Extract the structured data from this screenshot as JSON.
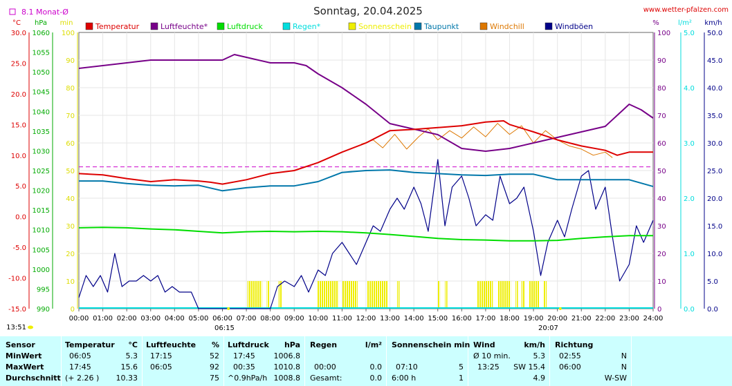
{
  "header": {
    "title": "Sonntag, 20.04.2025",
    "source": "www.wetter-pfalzen.com",
    "monat_label": "8.1 Monat-Ø",
    "time_left": "13:51",
    "sunrise": "06:15",
    "sunset": "20:07"
  },
  "colors": {
    "temperatur": "#dd0000",
    "luftfeuchte": "#770088",
    "luftdruck": "#00dd00",
    "regen": "#00dddd",
    "sonnenschein": "#eeee00",
    "taupunkt": "#0077aa",
    "windchill": "#dd7700",
    "windboeen": "#000088",
    "monat": "#cc00cc",
    "stats_bg": "#ccffff"
  },
  "legend": [
    {
      "key": "temperatur",
      "label": "Temperatur"
    },
    {
      "key": "luftfeuchte",
      "label": "Luftfeuchte*"
    },
    {
      "key": "luftdruck",
      "label": "Luftdruck"
    },
    {
      "key": "regen",
      "label": "Regen*"
    },
    {
      "key": "sonnenschein",
      "label": "Sonnenschein"
    },
    {
      "key": "taupunkt",
      "label": "Taupunkt"
    },
    {
      "key": "windchill",
      "label": "Windchill"
    },
    {
      "key": "windboeen",
      "label": "Windböen"
    }
  ],
  "axes": {
    "temp": {
      "unit": "°C",
      "ticks": [
        "30.0",
        "25.0",
        "20.0",
        "15.0",
        "10.0",
        "5.0",
        "0.0",
        "-5.0",
        "-10.0",
        "-15.0"
      ]
    },
    "hpa": {
      "unit": "hPa",
      "ticks": [
        "1060",
        "1055",
        "1050",
        "1045",
        "1040",
        "1035",
        "1030",
        "1025",
        "1020",
        "1015",
        "1010",
        "1005",
        "1000",
        "995",
        "990"
      ]
    },
    "min": {
      "unit": "min",
      "ticks": [
        "100",
        "90",
        "80",
        "70",
        "60",
        "50",
        "40",
        "30",
        "20",
        "10",
        "0"
      ]
    },
    "pct": {
      "unit": "%",
      "ticks": [
        "100",
        "90",
        "80",
        "70",
        "60",
        "50",
        "40",
        "30",
        "20",
        "10",
        "0"
      ]
    },
    "rain": {
      "unit": "l/m²",
      "ticks": [
        "5.0",
        "4.0",
        "3.0",
        "2.0",
        "1.0",
        "0.0"
      ]
    },
    "wind": {
      "unit": "km/h",
      "ticks": [
        "50.0",
        "45.0",
        "40.0",
        "35.0",
        "30.0",
        "25.0",
        "20.0",
        "15.0",
        "10.0",
        "5.0",
        "0.0"
      ]
    },
    "x_ticks": [
      "00:00",
      "01:00",
      "02:00",
      "03:00",
      "04:00",
      "05:00",
      "06:00",
      "07:00",
      "08:00",
      "09:00",
      "10:00",
      "11:00",
      "12:00",
      "13:00",
      "14:00",
      "15:00",
      "16:00",
      "17:00",
      "18:00",
      "19:00",
      "20:00",
      "21:00",
      "22:00",
      "23:00",
      "24:00"
    ]
  },
  "chart_data": {
    "type": "line",
    "x_unit": "hour",
    "monat_mittel_temp": 8.1,
    "series": [
      {
        "name": "Temperatur",
        "axis": "temp",
        "x": [
          0,
          1,
          2,
          3,
          4,
          5,
          5.5,
          6,
          7,
          8,
          9,
          10,
          11,
          12,
          13,
          14,
          15,
          16,
          17,
          17.75,
          18,
          19,
          20,
          21,
          22,
          22.5,
          23,
          24
        ],
        "y": [
          7.0,
          6.8,
          6.2,
          5.7,
          6.0,
          5.8,
          5.6,
          5.3,
          6.0,
          7.0,
          7.5,
          8.8,
          10.5,
          12.0,
          14.0,
          14.2,
          14.5,
          14.8,
          15.4,
          15.6,
          15.0,
          13.8,
          12.5,
          11.5,
          10.8,
          10.0,
          10.5,
          10.5
        ]
      },
      {
        "name": "Luftfeuchte*",
        "axis": "pct",
        "x": [
          0,
          1,
          2,
          3,
          4,
          5,
          6,
          6.5,
          7,
          8,
          9,
          9.5,
          10,
          11,
          12,
          13,
          14,
          15,
          16,
          17,
          18,
          19,
          20,
          20.5,
          21,
          22,
          22.5,
          23,
          23.5,
          24
        ],
        "y": [
          87,
          88,
          89,
          90,
          90,
          90,
          90,
          92,
          91,
          89,
          89,
          88,
          85,
          80,
          74,
          67,
          65,
          63,
          58,
          57,
          58,
          60,
          62,
          63,
          64,
          66,
          70,
          74,
          72,
          69
        ]
      },
      {
        "name": "Luftdruck",
        "axis": "hpa",
        "x": [
          0,
          1,
          2,
          3,
          4,
          5,
          6,
          7,
          8,
          9,
          10,
          11,
          12,
          13,
          14,
          15,
          16,
          17,
          18,
          19,
          20,
          21,
          22,
          23,
          24
        ],
        "y": [
          1010.5,
          1010.6,
          1010.5,
          1010.2,
          1010.0,
          1009.6,
          1009.2,
          1009.5,
          1009.6,
          1009.5,
          1009.6,
          1009.5,
          1009.2,
          1008.8,
          1008.3,
          1007.8,
          1007.5,
          1007.4,
          1007.2,
          1007.2,
          1007.3,
          1007.8,
          1008.2,
          1008.5,
          1008.5
        ]
      },
      {
        "name": "Taupunkt",
        "axis": "temp",
        "x": [
          0,
          1,
          2,
          3,
          4,
          5,
          6,
          7,
          8,
          9,
          10,
          11,
          12,
          13,
          14,
          15,
          16,
          17,
          18,
          19,
          20,
          21,
          22,
          23,
          24
        ],
        "y": [
          5.8,
          5.8,
          5.4,
          5.1,
          5.0,
          5.1,
          4.2,
          4.7,
          5.0,
          5.0,
          5.7,
          7.2,
          7.5,
          7.6,
          7.2,
          7.0,
          6.8,
          6.7,
          6.9,
          6.9,
          6.0,
          6.0,
          6.0,
          6.0,
          4.9
        ]
      },
      {
        "name": "Windchill",
        "axis": "temp",
        "x": [
          11.8,
          12.3,
          12.7,
          13.2,
          13.7,
          14.2,
          14.6,
          15.0,
          15.5,
          16.0,
          16.5,
          17.0,
          17.5,
          18.0,
          18.5,
          19.0,
          19.5,
          20.0,
          20.5,
          21.0,
          21.5,
          22.0,
          22.3
        ],
        "y": [
          11.8,
          12.5,
          11.2,
          13.4,
          11.0,
          13.0,
          14.3,
          12.5,
          14.0,
          12.8,
          14.6,
          13.0,
          15.2,
          13.4,
          14.8,
          12.0,
          14.0,
          12.5,
          11.5,
          11.0,
          10.0,
          10.5,
          9.6
        ]
      },
      {
        "name": "Windböen",
        "axis": "wind",
        "x": [
          0,
          0.3,
          0.6,
          0.9,
          1.2,
          1.5,
          1.8,
          2.1,
          2.4,
          2.7,
          3.0,
          3.3,
          3.6,
          3.9,
          4.2,
          4.5,
          4.7,
          5.0,
          6.0,
          7.0,
          8.0,
          8.3,
          8.6,
          9.0,
          9.3,
          9.6,
          10.0,
          10.3,
          10.6,
          11.0,
          11.3,
          11.6,
          12.0,
          12.3,
          12.6,
          13.0,
          13.3,
          13.6,
          14.0,
          14.3,
          14.6,
          15.0,
          15.3,
          15.6,
          16.0,
          16.3,
          16.6,
          17.0,
          17.3,
          17.6,
          18.0,
          18.3,
          18.6,
          19.0,
          19.3,
          19.6,
          20.0,
          20.3,
          20.6,
          21.0,
          21.3,
          21.6,
          22.0,
          22.3,
          22.6,
          23.0,
          23.3,
          23.6,
          24.0
        ],
        "y": [
          2,
          6,
          4,
          6,
          3,
          10,
          4,
          5,
          5,
          6,
          5,
          6,
          3,
          4,
          3,
          3,
          3,
          0,
          0,
          0,
          0,
          4,
          5,
          4,
          6,
          3,
          7,
          6,
          10,
          12,
          10,
          8,
          12,
          15,
          14,
          18,
          20,
          18,
          22,
          19,
          14,
          27,
          15,
          22,
          24,
          20,
          15,
          17,
          16,
          24,
          19,
          20,
          22,
          14,
          6,
          12,
          16,
          13,
          18,
          24,
          25,
          18,
          22,
          13,
          5,
          8,
          15,
          12,
          16
        ]
      }
    ],
    "sonnenschein_intervals": [
      [
        7.05,
        7.65
      ],
      [
        7.85,
        7.95
      ],
      [
        8.35,
        8.5
      ],
      [
        9.95,
        10.85
      ],
      [
        11.0,
        11.65
      ],
      [
        12.05,
        12.9
      ],
      [
        13.3,
        13.4
      ],
      [
        15.0,
        15.1
      ],
      [
        15.3,
        15.4
      ],
      [
        16.65,
        17.3
      ],
      [
        17.5,
        18.05
      ],
      [
        18.25,
        18.35
      ],
      [
        18.5,
        18.65
      ],
      [
        18.8,
        19.25
      ],
      [
        19.4,
        19.55
      ]
    ]
  },
  "stats": {
    "headers": {
      "sensor": "Sensor",
      "temperatur": "Temperatur",
      "temperatur_unit": "°C",
      "luftfeuchte": "Luftfeuchte",
      "luftfeuchte_unit": "%",
      "luftdruck": "Luftdruck",
      "luftdruck_unit": "hPa",
      "regen": "Regen",
      "regen_unit": "l/m²",
      "sonnenschein": "Sonnenschein min",
      "wind": "Wind",
      "wind_unit": "km/h",
      "richtung": "Richtung"
    },
    "rows": [
      {
        "label": "MinWert",
        "t_time": "06:05",
        "t_val": "5.3",
        "h_time": "17:15",
        "h_val": "52",
        "p_time": "17:45",
        "p_val": "1006.8",
        "r_time": "",
        "r_val": "",
        "s_time": "",
        "s_val": "",
        "w_time": "Ø 10 min.",
        "w_val": "5.3",
        "d_time": "02:55",
        "d_val": "N"
      },
      {
        "label": "MaxWert",
        "t_time": "17:45",
        "t_val": "15.6",
        "h_time": "06:05",
        "h_val": "92",
        "p_time": "00:35",
        "p_val": "1010.8",
        "r_time": "00:00",
        "r_val": "0.0",
        "s_time": "07:10",
        "s_val": "5",
        "w_time": "13:25",
        "w_val": "SW 15.4",
        "d_time": "06:00",
        "d_val": "N"
      },
      {
        "label": "Durchschnitt",
        "t_time": "(+ 2.26 )",
        "t_val": "10.33",
        "h_time": "",
        "h_val": "75",
        "p_time": "^0.9hPa/h",
        "p_val": "1008.8",
        "r_time": "Gesamt:",
        "r_val": "0.0",
        "s_time": "6:00 h",
        "s_val": "1",
        "w_time": "",
        "w_val": "4.9",
        "d_time": "",
        "d_val": "W-SW"
      }
    ]
  }
}
